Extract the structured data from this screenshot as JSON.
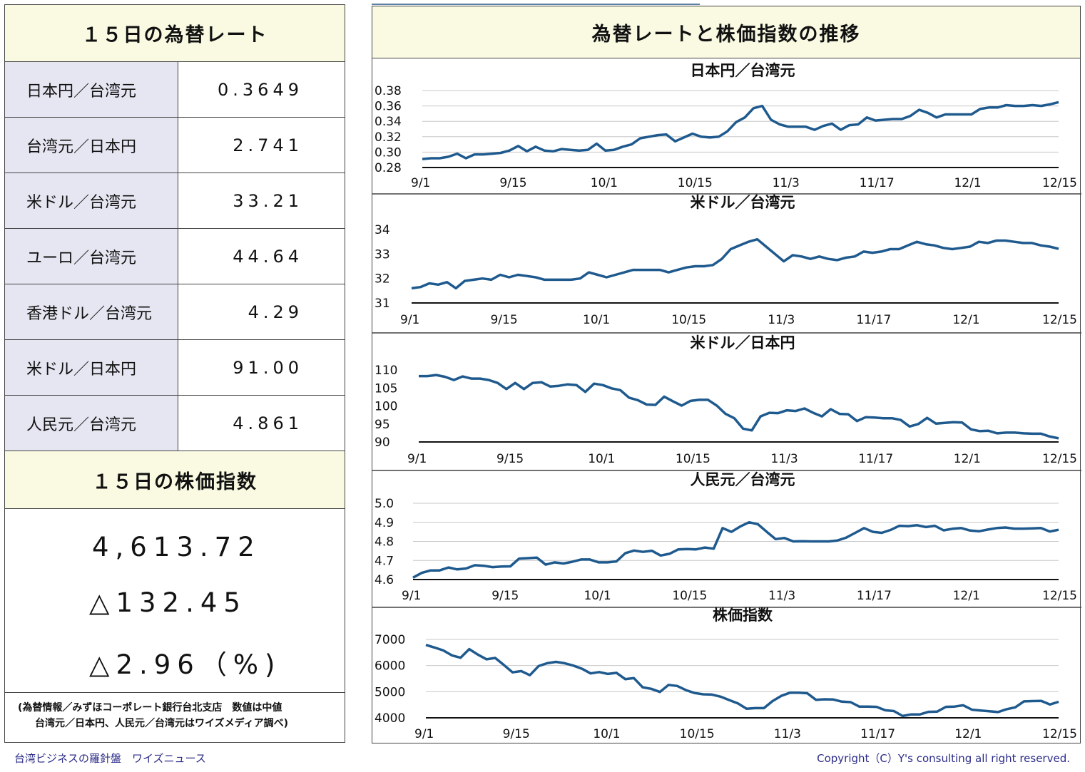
{
  "rates_title": "１５日の為替レート",
  "rates": [
    {
      "name": "日本円／台湾元",
      "value": "0.3649"
    },
    {
      "name": "台湾元／日本円",
      "value": "2.741"
    },
    {
      "name": "米ドル／台湾元",
      "value": "33.21"
    },
    {
      "name": "ユーロ／台湾元",
      "value": "44.64"
    },
    {
      "name": "香港ドル／台湾元",
      "value": "4.29"
    },
    {
      "name": "米ドル／日本円",
      "value": "91.00"
    },
    {
      "name": "人民元／台湾元",
      "value": "4.861"
    }
  ],
  "stock_title": "１５日の株価指数",
  "stock": {
    "index": "4,613.72",
    "change": "△132.45",
    "percent": "△2.96（%)"
  },
  "footnote": {
    "line1": "(為替情報／みずほコーポレート銀行台北支店　数値は中値",
    "line2": "台湾元／日本円、人民元／台湾元はワイズメディア調べ)"
  },
  "right_title": "為替レートと株価指数の推移",
  "footer_left": "台湾ビジネスの羅針盤　ワイズニュース",
  "footer_right": "Copyright（C）Y's consulting all right reserved.",
  "colors": {
    "line": "#1f5a8e",
    "header_bg": "#fafae3",
    "name_bg": "#e5e6f1"
  },
  "chart_data": [
    {
      "type": "line",
      "title": "日本円／台湾元",
      "x_ticks": [
        "9/1",
        "9/15",
        "10/1",
        "10/15",
        "11/3",
        "11/17",
        "12/1",
        "12/15"
      ],
      "y_ticks": [
        "0.38",
        "0.36",
        "0.34",
        "0.32",
        "0.30",
        "0.28"
      ],
      "ylim": [
        0.28,
        0.38
      ],
      "grid": true,
      "values": [
        0.291,
        0.292,
        0.292,
        0.294,
        0.298,
        0.292,
        0.297,
        0.297,
        0.298,
        0.299,
        0.302,
        0.308,
        0.301,
        0.307,
        0.302,
        0.301,
        0.304,
        0.303,
        0.302,
        0.303,
        0.311,
        0.302,
        0.303,
        0.307,
        0.31,
        0.318,
        0.32,
        0.322,
        0.323,
        0.314,
        0.319,
        0.324,
        0.32,
        0.319,
        0.32,
        0.327,
        0.339,
        0.345,
        0.357,
        0.36,
        0.342,
        0.336,
        0.333,
        0.333,
        0.333,
        0.329,
        0.334,
        0.337,
        0.329,
        0.335,
        0.336,
        0.345,
        0.341,
        0.342,
        0.343,
        0.343,
        0.347,
        0.355,
        0.351,
        0.345,
        0.349,
        0.349,
        0.349,
        0.349,
        0.356,
        0.358,
        0.358,
        0.361,
        0.36,
        0.36,
        0.361,
        0.36,
        0.362,
        0.3649
      ]
    },
    {
      "type": "line",
      "title": "米ドル／台湾元",
      "x_ticks": [
        "9/1",
        "9/15",
        "10/1",
        "10/15",
        "11/3",
        "11/17",
        "12/1",
        "12/15"
      ],
      "y_ticks": [
        "34",
        "33",
        "32",
        "31"
      ],
      "ylim": [
        31,
        34
      ],
      "grid": false,
      "values": [
        31.6,
        31.65,
        31.8,
        31.75,
        31.85,
        31.6,
        31.9,
        31.95,
        32.0,
        31.95,
        32.15,
        32.05,
        32.15,
        32.1,
        32.05,
        31.95,
        31.95,
        31.95,
        31.95,
        32.0,
        32.25,
        32.15,
        32.05,
        32.15,
        32.25,
        32.35,
        32.35,
        32.35,
        32.35,
        32.25,
        32.35,
        32.45,
        32.5,
        32.5,
        32.55,
        32.8,
        33.2,
        33.35,
        33.5,
        33.6,
        33.3,
        33.0,
        32.7,
        32.95,
        32.9,
        32.8,
        32.9,
        32.8,
        32.75,
        32.85,
        32.9,
        33.1,
        33.05,
        33.1,
        33.2,
        33.2,
        33.35,
        33.5,
        33.4,
        33.35,
        33.25,
        33.2,
        33.25,
        33.3,
        33.5,
        33.45,
        33.55,
        33.55,
        33.5,
        33.45,
        33.45,
        33.35,
        33.3,
        33.21
      ]
    },
    {
      "type": "line",
      "title": "米ドル／日本円",
      "x_ticks": [
        "9/1",
        "9/15",
        "10/1",
        "10/15",
        "11/3",
        "11/17",
        "12/1",
        "12/15"
      ],
      "y_ticks": [
        "110",
        "105",
        "100",
        "95",
        "90"
      ],
      "ylim": [
        90,
        110
      ],
      "grid": false,
      "values": [
        108.3,
        108.3,
        108.6,
        108.1,
        107.2,
        108.2,
        107.6,
        107.6,
        107.2,
        106.4,
        104.7,
        106.4,
        104.7,
        106.4,
        106.6,
        105.4,
        105.6,
        106.0,
        105.8,
        103.9,
        106.2,
        105.8,
        104.9,
        104.4,
        102.3,
        101.6,
        100.4,
        100.3,
        102.6,
        101.3,
        100.1,
        101.4,
        101.7,
        101.7,
        100.1,
        97.8,
        96.6,
        93.7,
        93.2,
        97.1,
        98.1,
        98.0,
        98.8,
        98.6,
        99.3,
        98.1,
        97.1,
        99.1,
        97.8,
        97.7,
        95.8,
        96.9,
        96.8,
        96.6,
        96.6,
        96.1,
        94.3,
        95.0,
        96.7,
        95.1,
        95.3,
        95.5,
        95.4,
        93.5,
        93.0,
        93.1,
        92.4,
        92.6,
        92.6,
        92.4,
        92.3,
        92.3,
        91.5,
        91.0
      ]
    },
    {
      "type": "line",
      "title": "人民元／台湾元",
      "x_ticks": [
        "9/1",
        "9/15",
        "10/1",
        "10/15",
        "11/3",
        "11/17",
        "12/1",
        "12/15"
      ],
      "y_ticks": [
        "5.0",
        "4.9",
        "4.8",
        "4.7",
        "4.6"
      ],
      "ylim": [
        4.6,
        5.0
      ],
      "grid": true,
      "values": [
        4.61,
        4.635,
        4.648,
        4.648,
        4.663,
        4.653,
        4.658,
        4.675,
        4.672,
        4.665,
        4.668,
        4.669,
        4.71,
        4.712,
        4.715,
        4.678,
        4.69,
        4.684,
        4.693,
        4.705,
        4.705,
        4.69,
        4.69,
        4.695,
        4.738,
        4.752,
        4.745,
        4.751,
        4.726,
        4.735,
        4.758,
        4.76,
        4.758,
        4.768,
        4.762,
        4.87,
        4.85,
        4.878,
        4.9,
        4.89,
        4.85,
        4.812,
        4.818,
        4.8,
        4.801,
        4.8,
        4.8,
        4.8,
        4.805,
        4.82,
        4.845,
        4.87,
        4.85,
        4.845,
        4.86,
        4.882,
        4.88,
        4.885,
        4.875,
        4.882,
        4.858,
        4.866,
        4.87,
        4.857,
        4.853,
        4.862,
        4.87,
        4.873,
        4.867,
        4.867,
        4.868,
        4.87,
        4.852,
        4.861
      ]
    },
    {
      "type": "line",
      "title": "株価指数",
      "x_ticks": [
        "9/1",
        "9/15",
        "10/1",
        "10/15",
        "11/3",
        "11/17",
        "12/1",
        "12/15"
      ],
      "y_ticks": [
        "7000",
        "6000",
        "5000",
        "4000"
      ],
      "ylim": [
        4000,
        7000
      ],
      "grid": true,
      "values": [
        6790,
        6690,
        6580,
        6390,
        6300,
        6630,
        6420,
        6240,
        6290,
        6020,
        5740,
        5790,
        5630,
        5980,
        6090,
        6140,
        6090,
        6000,
        5880,
        5700,
        5750,
        5680,
        5720,
        5480,
        5520,
        5170,
        5110,
        4990,
        5260,
        5220,
        5060,
        4950,
        4900,
        4890,
        4810,
        4680,
        4550,
        4350,
        4370,
        4370,
        4640,
        4840,
        4960,
        4960,
        4940,
        4690,
        4710,
        4700,
        4620,
        4600,
        4430,
        4430,
        4420,
        4290,
        4260,
        4070,
        4130,
        4130,
        4230,
        4240,
        4420,
        4430,
        4480,
        4310,
        4280,
        4250,
        4220,
        4330,
        4400,
        4630,
        4640,
        4650,
        4510,
        4613.72
      ]
    }
  ]
}
